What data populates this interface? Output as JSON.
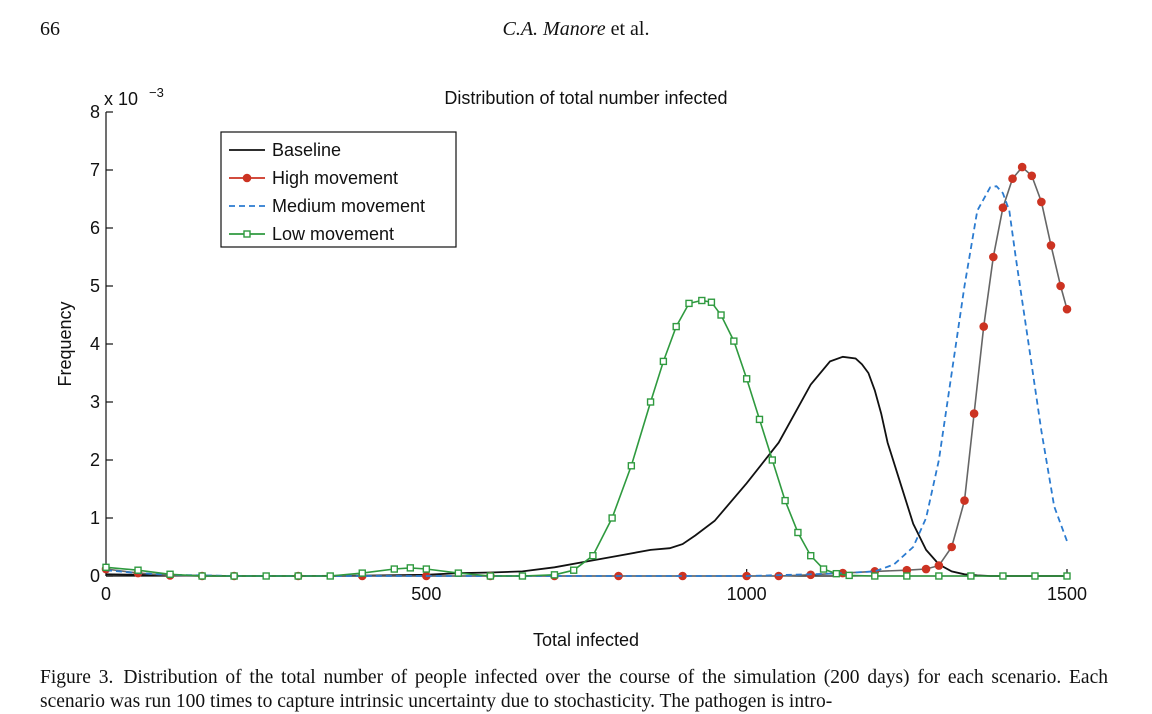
{
  "page": {
    "page_number": "66",
    "running_head_author": "C.A. Manore",
    "running_head_suffix": " et al."
  },
  "caption": {
    "label": "Figure 3.",
    "text": "Distribution of the total number of people infected over the course of the simulation (200 days) for each scenario. Each scenario was run 100 times to capture intrinsic uncertainty due to stochasticity. The pathogen is intro-"
  },
  "chart_data": {
    "type": "line",
    "title": "Distribution of total number infected",
    "xlabel": "Total infected",
    "ylabel": "Frequency",
    "y_scale_label": "x 10",
    "y_scale_exponent": "−3",
    "xlim": [
      0,
      1500
    ],
    "ylim": [
      0,
      8
    ],
    "x_ticks": [
      0,
      500,
      1000,
      1500
    ],
    "y_ticks": [
      0,
      1,
      2,
      3,
      4,
      5,
      6,
      7,
      8
    ],
    "grid": false,
    "legend_position": "top-left",
    "series": [
      {
        "name": "Baseline",
        "color": "#111111",
        "style": "solid",
        "marker": "none",
        "x": [
          0,
          50,
          100,
          150,
          200,
          300,
          400,
          500,
          550,
          600,
          650,
          700,
          750,
          800,
          850,
          880,
          900,
          920,
          950,
          1000,
          1050,
          1080,
          1100,
          1130,
          1150,
          1170,
          1180,
          1190,
          1200,
          1210,
          1220,
          1240,
          1260,
          1280,
          1300,
          1320,
          1340,
          1360,
          1380,
          1400,
          1450,
          1500
        ],
        "y": [
          0.03,
          0.02,
          0.01,
          0.005,
          0.0,
          0.0,
          0.005,
          0.02,
          0.05,
          0.06,
          0.08,
          0.15,
          0.25,
          0.35,
          0.45,
          0.48,
          0.55,
          0.7,
          0.95,
          1.6,
          2.3,
          2.9,
          3.3,
          3.7,
          3.78,
          3.75,
          3.65,
          3.5,
          3.2,
          2.8,
          2.3,
          1.6,
          0.9,
          0.45,
          0.2,
          0.08,
          0.03,
          0.01,
          0.0,
          0.0,
          0.0,
          0.0
        ]
      },
      {
        "name": "High movement",
        "color": "#cc3322",
        "style": "solid",
        "marker": "circle",
        "x": [
          0,
          50,
          100,
          150,
          200,
          300,
          400,
          500,
          600,
          700,
          800,
          900,
          1000,
          1050,
          1100,
          1150,
          1200,
          1250,
          1280,
          1300,
          1320,
          1340,
          1355,
          1370,
          1385,
          1400,
          1415,
          1430,
          1445,
          1460,
          1475,
          1490,
          1500
        ],
        "y": [
          0.12,
          0.05,
          0.01,
          0.0,
          0.0,
          0.0,
          0.0,
          0.0,
          0.0,
          0.0,
          0.0,
          0.0,
          0.0,
          0.0,
          0.02,
          0.05,
          0.08,
          0.1,
          0.12,
          0.18,
          0.5,
          1.3,
          2.8,
          4.3,
          5.5,
          6.35,
          6.85,
          7.05,
          6.9,
          6.45,
          5.7,
          5.0,
          4.6
        ]
      },
      {
        "name": "Medium movement",
        "color": "#2b7bd0",
        "style": "dashed",
        "marker": "none",
        "x": [
          0,
          50,
          100,
          200,
          300,
          400,
          500,
          600,
          700,
          800,
          900,
          1000,
          1100,
          1150,
          1200,
          1230,
          1260,
          1280,
          1300,
          1320,
          1340,
          1360,
          1380,
          1390,
          1400,
          1410,
          1420,
          1440,
          1460,
          1480,
          1500
        ],
        "y": [
          0.1,
          0.05,
          0.02,
          0.0,
          0.0,
          0.0,
          0.0,
          0.0,
          0.0,
          0.0,
          0.0,
          0.0,
          0.03,
          0.05,
          0.08,
          0.2,
          0.5,
          1.0,
          2.0,
          3.5,
          5.0,
          6.3,
          6.7,
          6.72,
          6.6,
          6.3,
          5.5,
          4.0,
          2.5,
          1.2,
          0.6
        ]
      },
      {
        "name": "Low movement",
        "color": "#2f9a3f",
        "style": "solid",
        "marker": "square",
        "x": [
          0,
          50,
          100,
          150,
          200,
          250,
          300,
          350,
          400,
          450,
          475,
          500,
          550,
          600,
          650,
          700,
          730,
          760,
          790,
          820,
          850,
          870,
          890,
          910,
          930,
          945,
          960,
          980,
          1000,
          1020,
          1040,
          1060,
          1080,
          1100,
          1120,
          1140,
          1160,
          1200,
          1250,
          1300,
          1350,
          1400,
          1450,
          1500
        ],
        "y": [
          0.15,
          0.1,
          0.03,
          0.0,
          0.0,
          0.0,
          0.0,
          0.0,
          0.05,
          0.12,
          0.14,
          0.12,
          0.05,
          0.0,
          0.0,
          0.02,
          0.1,
          0.35,
          1.0,
          1.9,
          3.0,
          3.7,
          4.3,
          4.7,
          4.75,
          4.72,
          4.5,
          4.05,
          3.4,
          2.7,
          2.0,
          1.3,
          0.75,
          0.35,
          0.12,
          0.04,
          0.01,
          0.0,
          0.0,
          0.0,
          0.0,
          0.0,
          0.0,
          0.0
        ]
      }
    ]
  }
}
